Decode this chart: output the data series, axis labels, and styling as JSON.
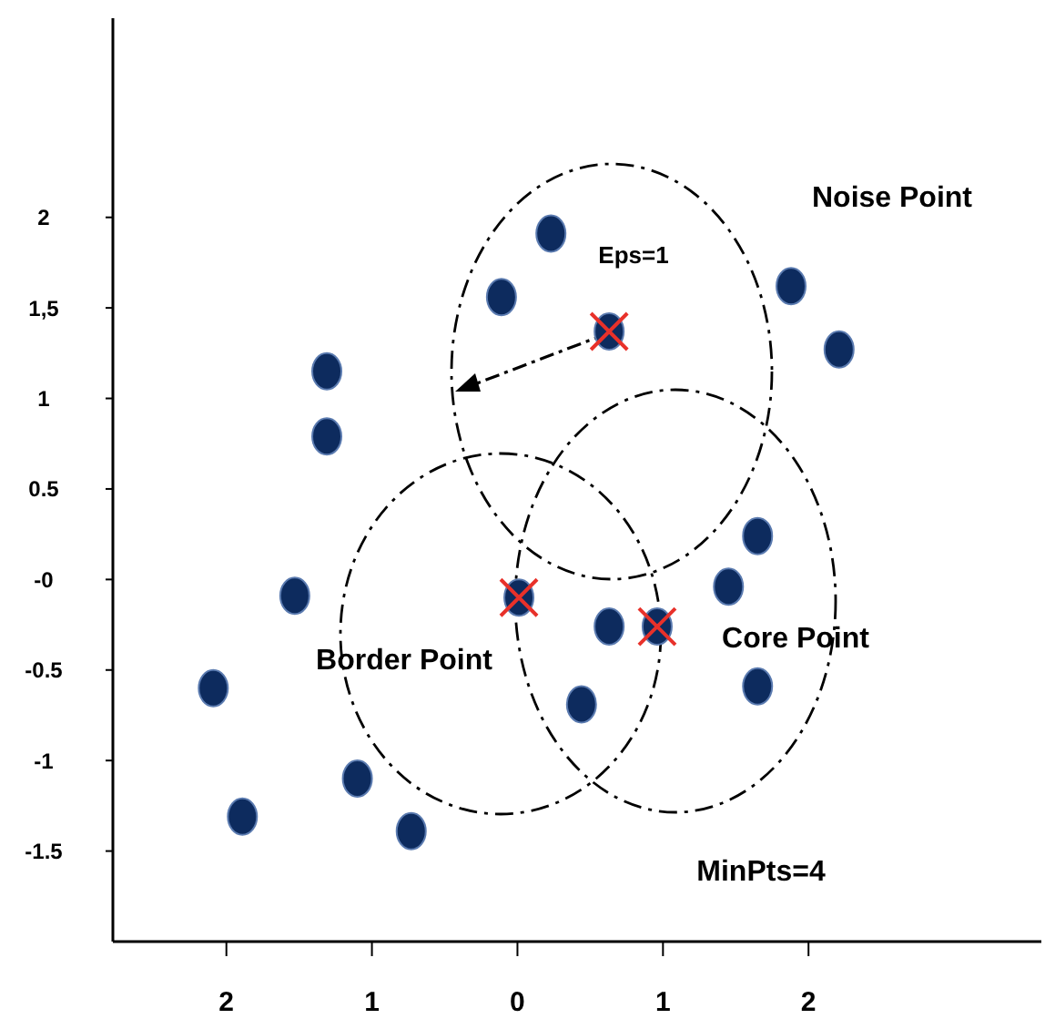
{
  "chart_data": {
    "type": "scatter",
    "xlim": [
      -2.78,
      3.6
    ],
    "ylim": [
      -2,
      3.1
    ],
    "xticks": [
      {
        "value": -2,
        "label": "2"
      },
      {
        "value": -1,
        "label": "1"
      },
      0,
      1,
      2
    ],
    "yticks": [
      2,
      {
        "value": 1.5,
        "label": "1,5"
      },
      1,
      0.5,
      {
        "value": 0,
        "label": "-0"
      },
      -0.5,
      -1,
      -1.5
    ],
    "grid": false,
    "marker": "circle",
    "series": [
      {
        "color": "#0d2b5e",
        "x": [
          0.23,
          -0.11,
          0.63,
          1.88,
          2.21,
          -1.31,
          -1.31,
          -1.53,
          0.01,
          0.63,
          0.96,
          1.45,
          1.65,
          1.65,
          0.44,
          -2.09,
          -1.1,
          -1.89,
          -0.73
        ],
        "values": [
          1.91,
          1.56,
          1.37,
          1.62,
          1.27,
          1.15,
          0.79,
          -0.09,
          -0.1,
          -0.26,
          -0.26,
          -0.04,
          0.24,
          -0.59,
          -0.69,
          -0.6,
          -1.1,
          -1.31,
          -1.39
        ]
      },
      {
        "color": "#e8312a",
        "marker": "cross",
        "x": [
          0.63,
          0.01,
          0.96
        ],
        "values": [
          1.37,
          -0.1,
          -0.26
        ]
      }
    ],
    "annotations": [
      "Noise Point",
      "Eps=1",
      "Border Point",
      "Core Point",
      "MinPts=4"
    ]
  }
}
